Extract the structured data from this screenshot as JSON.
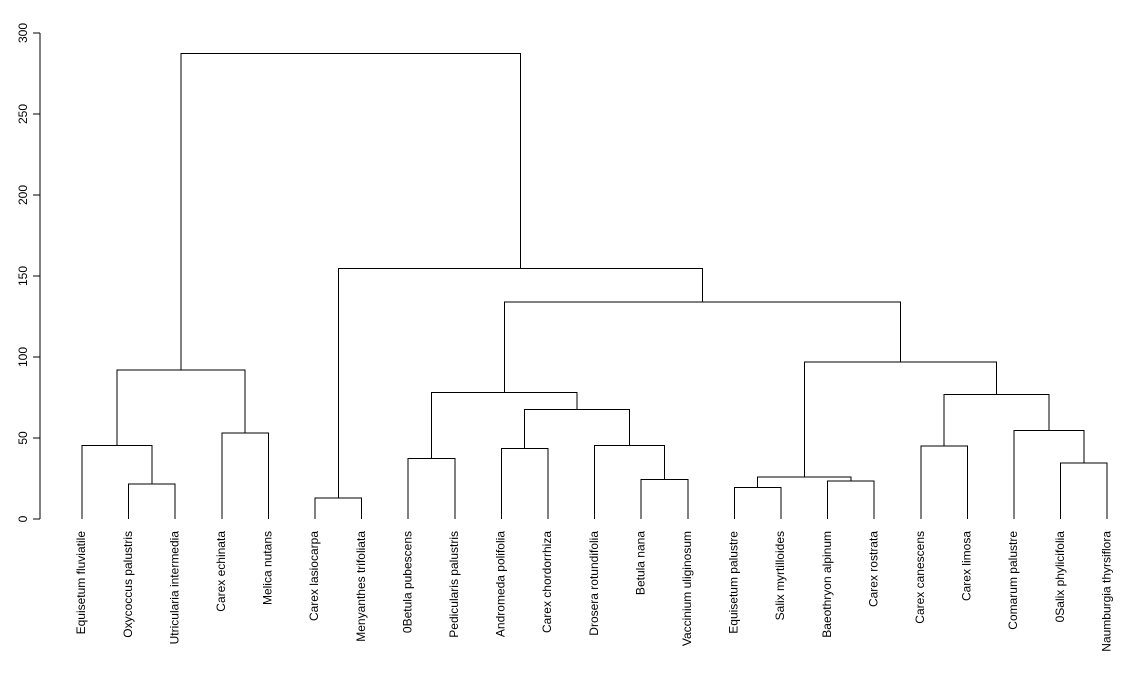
{
  "chart_data": {
    "type": "dendrogram",
    "title": "",
    "xlabel": "",
    "ylabel": "",
    "ylim": [
      0,
      300
    ],
    "y_ticks": [
      0,
      50,
      100,
      150,
      200,
      250,
      300
    ],
    "grid": false,
    "leaves": [
      "Equisetum fluviatile",
      "Oxycoccus palustris",
      "Utricularia intermedia",
      "Carex echinata",
      "Melica nutans",
      "Carex lasiocarpa",
      "Menyanthes trifoliata",
      "0Betula pubescens",
      "Pedicularis palustris",
      "Andromeda polifolia",
      "Carex chordorrhiza",
      "Drosera rotundifolia",
      "Betula nana",
      "Vaccinium uliginosum",
      "Equisetum palustre",
      "Salix myrtilloides",
      "Baeothryon alpinum",
      "Carex rostrata",
      "Carex canescens",
      "Carex limosa",
      "Comarum palustre",
      "0Salix phylicifolia",
      "Naumburgia thyrsiflora"
    ],
    "merges": [
      {
        "left": "L1",
        "right": "L2",
        "height": 21.5
      },
      {
        "left": "L0",
        "right": "M0",
        "height": 45.5
      },
      {
        "left": "L3",
        "right": "L4",
        "height": 53.0
      },
      {
        "left": "M1",
        "right": "M2",
        "height": 92.0
      },
      {
        "left": "L5",
        "right": "L6",
        "height": 13.0
      },
      {
        "left": "L7",
        "right": "L8",
        "height": 37.5
      },
      {
        "left": "L9",
        "right": "L10",
        "height": 43.5
      },
      {
        "left": "L12",
        "right": "L13",
        "height": 24.5
      },
      {
        "left": "L11",
        "right": "M7",
        "height": 45.5
      },
      {
        "left": "M6",
        "right": "M8",
        "height": 67.5
      },
      {
        "left": "M5",
        "right": "M9",
        "height": 78.0
      },
      {
        "left": "L14",
        "right": "L15",
        "height": 19.5
      },
      {
        "left": "L16",
        "right": "L17",
        "height": 23.5
      },
      {
        "left": "M11",
        "right": "M12",
        "height": 26.0
      },
      {
        "left": "L18",
        "right": "L19",
        "height": 45.0
      },
      {
        "left": "L21",
        "right": "L22",
        "height": 34.5
      },
      {
        "left": "L20",
        "right": "M15",
        "height": 54.5
      },
      {
        "left": "M14",
        "right": "M16",
        "height": 77.0
      },
      {
        "left": "M13",
        "right": "M17",
        "height": 97.0
      },
      {
        "left": "M10",
        "right": "M18",
        "height": 134.0
      },
      {
        "left": "M4",
        "right": "M19",
        "height": 154.5
      },
      {
        "left": "M3",
        "right": "M20",
        "height": 287.5
      }
    ]
  }
}
